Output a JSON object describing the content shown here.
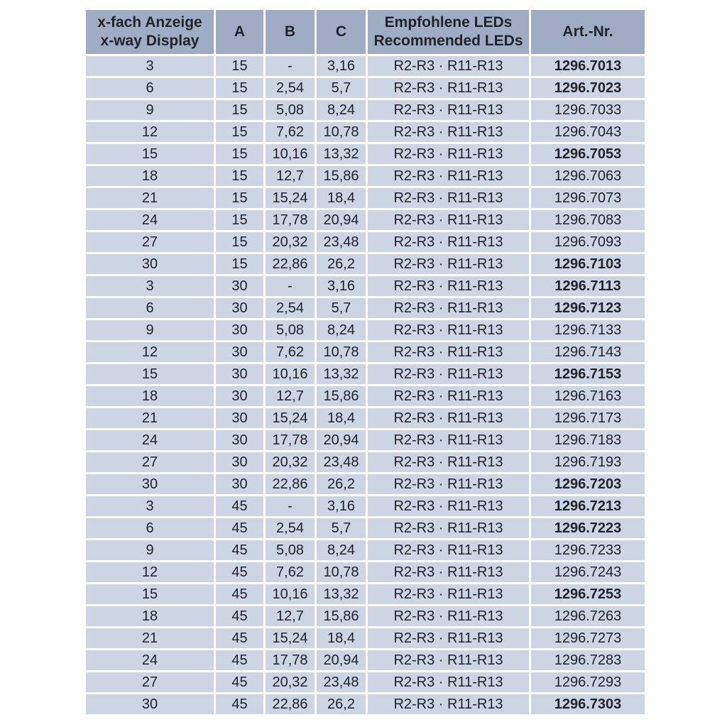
{
  "colors": {
    "header_bg": "#a0acc4",
    "row_bg": "#cdd4e2",
    "text": "#22242c",
    "grid": "#ffffff"
  },
  "table": {
    "headers": {
      "col1_line1": "x-fach Anzeige",
      "col1_line2": "x-way Display",
      "col2": "A",
      "col3": "B",
      "col4": "C",
      "col5_line1": "Empfohlene LEDs",
      "col5_line2": "Recommended LEDs",
      "col6": "Art.-Nr."
    },
    "rows": [
      {
        "display": "3",
        "a": "15",
        "b": "-",
        "c": "3,16",
        "leds": "R2-R3 · R11-R13",
        "art": "1296.7013",
        "bold": true
      },
      {
        "display": "6",
        "a": "15",
        "b": "2,54",
        "c": "5,7",
        "leds": "R2-R3 · R11-R13",
        "art": "1296.7023",
        "bold": true
      },
      {
        "display": "9",
        "a": "15",
        "b": "5,08",
        "c": "8,24",
        "leds": "R2-R3 · R11-R13",
        "art": "1296.7033",
        "bold": false
      },
      {
        "display": "12",
        "a": "15",
        "b": "7,62",
        "c": "10,78",
        "leds": "R2-R3 · R11-R13",
        "art": "1296.7043",
        "bold": false
      },
      {
        "display": "15",
        "a": "15",
        "b": "10,16",
        "c": "13,32",
        "leds": "R2-R3 · R11-R13",
        "art": "1296.7053",
        "bold": true
      },
      {
        "display": "18",
        "a": "15",
        "b": "12,7",
        "c": "15,86",
        "leds": "R2-R3 · R11-R13",
        "art": "1296.7063",
        "bold": false
      },
      {
        "display": "21",
        "a": "15",
        "b": "15,24",
        "c": "18,4",
        "leds": "R2-R3 · R11-R13",
        "art": "1296.7073",
        "bold": false
      },
      {
        "display": "24",
        "a": "15",
        "b": "17,78",
        "c": "20,94",
        "leds": "R2-R3 · R11-R13",
        "art": "1296.7083",
        "bold": false
      },
      {
        "display": "27",
        "a": "15",
        "b": "20,32",
        "c": "23,48",
        "leds": "R2-R3 · R11-R13",
        "art": "1296.7093",
        "bold": false
      },
      {
        "display": "30",
        "a": "15",
        "b": "22,86",
        "c": "26,2",
        "leds": "R2-R3 · R11-R13",
        "art": "1296.7103",
        "bold": true
      },
      {
        "display": "3",
        "a": "30",
        "b": "-",
        "c": "3,16",
        "leds": "R2-R3 · R11-R13",
        "art": "1296.7113",
        "bold": true
      },
      {
        "display": "6",
        "a": "30",
        "b": "2,54",
        "c": "5,7",
        "leds": "R2-R3 · R11-R13",
        "art": "1296.7123",
        "bold": true
      },
      {
        "display": "9",
        "a": "30",
        "b": "5,08",
        "c": "8,24",
        "leds": "R2-R3 · R11-R13",
        "art": "1296.7133",
        "bold": false
      },
      {
        "display": "12",
        "a": "30",
        "b": "7,62",
        "c": "10,78",
        "leds": "R2-R3 · R11-R13",
        "art": "1296.7143",
        "bold": false
      },
      {
        "display": "15",
        "a": "30",
        "b": "10,16",
        "c": "13,32",
        "leds": "R2-R3 · R11-R13",
        "art": "1296.7153",
        "bold": true
      },
      {
        "display": "18",
        "a": "30",
        "b": "12,7",
        "c": "15,86",
        "leds": "R2-R3 · R11-R13",
        "art": "1296.7163",
        "bold": false
      },
      {
        "display": "21",
        "a": "30",
        "b": "15,24",
        "c": "18,4",
        "leds": "R2-R3 · R11-R13",
        "art": "1296.7173",
        "bold": false
      },
      {
        "display": "24",
        "a": "30",
        "b": "17,78",
        "c": "20,94",
        "leds": "R2-R3 · R11-R13",
        "art": "1296.7183",
        "bold": false
      },
      {
        "display": "27",
        "a": "30",
        "b": "20,32",
        "c": "23,48",
        "leds": "R2-R3 · R11-R13",
        "art": "1296.7193",
        "bold": false
      },
      {
        "display": "30",
        "a": "30",
        "b": "22,86",
        "c": "26,2",
        "leds": "R2-R3 · R11-R13",
        "art": "1296.7203",
        "bold": true
      },
      {
        "display": "3",
        "a": "45",
        "b": "-",
        "c": "3,16",
        "leds": "R2-R3 · R11-R13",
        "art": "1296.7213",
        "bold": true
      },
      {
        "display": "6",
        "a": "45",
        "b": "2,54",
        "c": "5,7",
        "leds": "R2-R3 · R11-R13",
        "art": "1296.7223",
        "bold": true
      },
      {
        "display": "9",
        "a": "45",
        "b": "5,08",
        "c": "8,24",
        "leds": "R2-R3 · R11-R13",
        "art": "1296.7233",
        "bold": false
      },
      {
        "display": "12",
        "a": "45",
        "b": "7,62",
        "c": "10,78",
        "leds": "R2-R3 · R11-R13",
        "art": "1296.7243",
        "bold": false
      },
      {
        "display": "15",
        "a": "45",
        "b": "10,16",
        "c": "13,32",
        "leds": "R2-R3 · R11-R13",
        "art": "1296.7253",
        "bold": true
      },
      {
        "display": "18",
        "a": "45",
        "b": "12,7",
        "c": "15,86",
        "leds": "R2-R3 · R11-R13",
        "art": "1296.7263",
        "bold": false
      },
      {
        "display": "21",
        "a": "45",
        "b": "15,24",
        "c": "18,4",
        "leds": "R2-R3 · R11-R13",
        "art": "1296.7273",
        "bold": false
      },
      {
        "display": "24",
        "a": "45",
        "b": "17,78",
        "c": "20,94",
        "leds": "R2-R3 · R11-R13",
        "art": "1296.7283",
        "bold": false
      },
      {
        "display": "27",
        "a": "45",
        "b": "20,32",
        "c": "23,48",
        "leds": "R2-R3 · R11-R13",
        "art": "1296.7293",
        "bold": false
      },
      {
        "display": "30",
        "a": "45",
        "b": "22,86",
        "c": "26,2",
        "leds": "R2-R3 · R11-R13",
        "art": "1296.7303",
        "bold": true
      }
    ]
  }
}
